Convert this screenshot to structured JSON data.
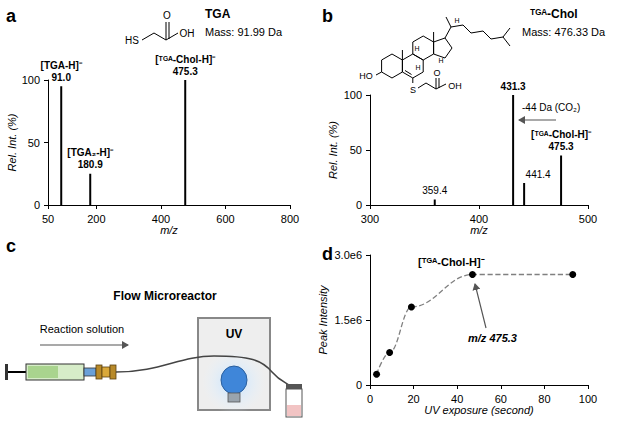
{
  "chart_data": [
    {
      "panel": "a",
      "type": "bar",
      "marker": "stick",
      "color": "#000000",
      "x": [
        91.0,
        180.9,
        475.3
      ],
      "values": [
        95,
        25,
        100
      ],
      "x_labels": [
        "91.0",
        "180.9",
        "475.3"
      ],
      "ions": [
        "[TGA-H]⁻",
        "[TGA₂-H]⁻",
        "[ᵀᴳᴬ-Chol-H]⁻"
      ],
      "xlim": [
        50,
        800
      ],
      "xticks": [
        50,
        200,
        400,
        600,
        800
      ],
      "ylim": [
        0,
        100
      ],
      "yticks": [
        0,
        50,
        100
      ],
      "xlabel": "m/z",
      "ylabel": "Rel. Int. (%)",
      "grid": false,
      "structure": {
        "name": "TGA",
        "mass": "Mass: 91.99 Da",
        "atoms": [
          "HS",
          "O",
          "OH"
        ]
      }
    },
    {
      "panel": "b",
      "type": "bar",
      "marker": "stick",
      "color": "#000000",
      "x": [
        359.4,
        431.3,
        441.4,
        475.3
      ],
      "values": [
        5,
        100,
        20,
        45
      ],
      "x_labels": [
        "359.4",
        "431.3",
        "441.4",
        "475.3"
      ],
      "ions": [
        null,
        null,
        null,
        "[ᵀᴳᴬ-Chol-H]⁻"
      ],
      "annotation": "-44 Da (CO₂)",
      "xlim": [
        300,
        500
      ],
      "xticks": [
        300,
        400,
        500
      ],
      "ylim": [
        0,
        100
      ],
      "yticks": [
        0,
        50,
        100
      ],
      "xlabel": "m/z",
      "ylabel": "Rel. Int. (%)",
      "grid": false,
      "structure": {
        "name": "ᵀᴳᴬ-Chol",
        "mass": "Mass: 476.33 Da",
        "atoms": [
          "HO",
          "S",
          "O",
          "OH",
          "H",
          "H",
          "H",
          "H"
        ]
      }
    },
    {
      "panel": "d",
      "type": "line",
      "marker": "circle",
      "line_style": "dashed",
      "color": "#000000",
      "title": "[ᵀᴳᴬ-Chol-H]⁻",
      "annotation": "m/z 475.3",
      "x": [
        3,
        9,
        19,
        47,
        93
      ],
      "values": [
        250000,
        750000,
        1800000,
        2550000,
        2550000
      ],
      "xlim": [
        0,
        100
      ],
      "xticks": [
        0,
        20,
        40,
        60,
        80,
        100
      ],
      "ylim": [
        0,
        3000000
      ],
      "yticks": [
        0,
        {
          "value": 1500000,
          "label": "1.5e6"
        },
        {
          "value": 3000000,
          "label": "3.0e6"
        }
      ],
      "xlabel": "UV exposure (second)",
      "ylabel": "Peak Intensity",
      "grid": false
    }
  ],
  "diagram": {
    "panel": "c",
    "title": "Flow Microreactor",
    "inlet": "Reaction solution",
    "lamp": "UV"
  }
}
